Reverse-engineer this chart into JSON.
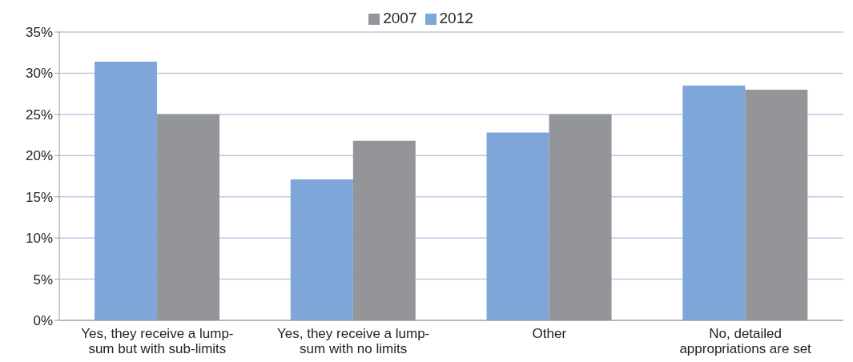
{
  "chart_data": {
    "type": "bar",
    "categories": [
      "Yes, they receive a lump-sum but with sub-limits",
      "Yes, they receive a lump-sum with no limits",
      "Other",
      "No, detailed appropriations are set"
    ],
    "series": [
      {
        "name": "2012",
        "color": "#7ea6d8",
        "values": [
          31.4,
          17.1,
          22.8,
          28.5
        ]
      },
      {
        "name": "2007",
        "color": "#939598",
        "values": [
          25,
          21.8,
          25,
          28
        ]
      }
    ],
    "ylim": [
      0,
      35
    ],
    "yticks": [
      {
        "value": 0,
        "label": "0%"
      },
      {
        "value": 5,
        "label": "5%"
      },
      {
        "value": 10,
        "label": "10%"
      },
      {
        "value": 15,
        "label": "15%"
      },
      {
        "value": 20,
        "label": "20%"
      },
      {
        "value": 25,
        "label": "25%"
      },
      {
        "value": 30,
        "label": "30%"
      },
      {
        "value": 35,
        "label": "35%"
      }
    ],
    "grid": "y",
    "legend": "top"
  }
}
